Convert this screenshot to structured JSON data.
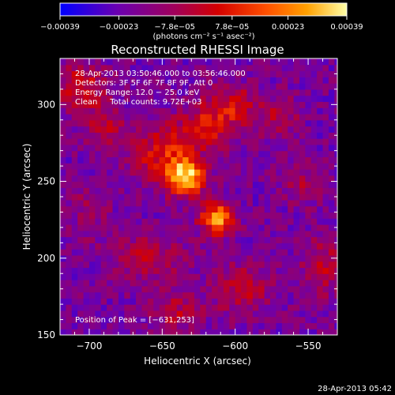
{
  "chart_data": {
    "type": "heatmap",
    "title": "Reconstructed RHESSI Image",
    "xlabel": "Heliocentric X (arcsec)",
    "ylabel": "Heliocentric Y (arcsec)",
    "xlim": [
      -720,
      -530
    ],
    "ylim": [
      150,
      330
    ],
    "x_ticks": [
      -700,
      -650,
      -600,
      -550
    ],
    "x_tick_labels": [
      "−700",
      "−650",
      "−600",
      "−550"
    ],
    "y_ticks": [
      150,
      200,
      250,
      300
    ],
    "y_tick_labels": [
      "150",
      "200",
      "250",
      "300"
    ],
    "colorbar": {
      "range": [
        -0.00039,
        0.00039
      ],
      "ticks": [
        -0.00039,
        -0.00023,
        -7.8e-05,
        7.8e-05,
        0.00023,
        0.00039
      ],
      "tick_labels": [
        "−0.00039",
        "−0.00023",
        "−7.8e−05",
        "7.8e−05",
        "0.00023",
        "0.00039"
      ],
      "units_label": "(photons cm⁻² s⁻¹ asec⁻²)",
      "colors": [
        "#0000ff",
        "#7000a8",
        "#b00000",
        "#ff4000",
        "#ff9a00",
        "#ffffa0"
      ]
    },
    "annotations": {
      "time_range": "28-Apr-2013 03:50:46.000 to 03:56:46.000",
      "detectors": "Detectors: 3F 5F 6F 7F 8F 9F, Att 0",
      "energy_range": "Energy Range: 12.0 − 25.0 keV",
      "clean": "Clean     Total counts: 9.72E+03",
      "peak_position": "Position of Peak = [−631,253]"
    },
    "peak": [
      -631,
      253
    ],
    "sources": [
      {
        "x": -634,
        "y": 253,
        "sx": 9,
        "sy": 8,
        "amp": 1.0
      },
      {
        "x": -612,
        "y": 226,
        "sx": 8,
        "sy": 7,
        "amp": 0.85
      },
      {
        "x": -650,
        "y": 268,
        "sx": 14,
        "sy": 12,
        "amp": 0.45
      },
      {
        "x": -620,
        "y": 285,
        "sx": 14,
        "sy": 10,
        "amp": 0.42
      },
      {
        "x": -602,
        "y": 300,
        "sx": 12,
        "sy": 9,
        "amp": 0.38
      },
      {
        "x": -570,
        "y": 292,
        "sx": 10,
        "sy": 10,
        "amp": 0.25
      },
      {
        "x": -705,
        "y": 312,
        "sx": 12,
        "sy": 10,
        "amp": 0.4
      },
      {
        "x": -690,
        "y": 285,
        "sx": 10,
        "sy": 10,
        "amp": 0.3
      },
      {
        "x": -660,
        "y": 200,
        "sx": 18,
        "sy": 12,
        "amp": 0.28
      },
      {
        "x": -595,
        "y": 180,
        "sx": 14,
        "sy": 12,
        "amp": 0.32
      },
      {
        "x": -640,
        "y": 165,
        "sx": 12,
        "sy": 8,
        "amp": 0.28
      },
      {
        "x": -540,
        "y": 195,
        "sx": 10,
        "sy": 14,
        "amp": 0.3
      },
      {
        "x": -555,
        "y": 250,
        "sx": 10,
        "sy": 10,
        "amp": 0.22
      },
      {
        "x": -700,
        "y": 230,
        "sx": 10,
        "sy": 12,
        "amp": 0.18
      }
    ]
  },
  "footer": {
    "timestamp": "28-Apr-2013 05:42"
  }
}
